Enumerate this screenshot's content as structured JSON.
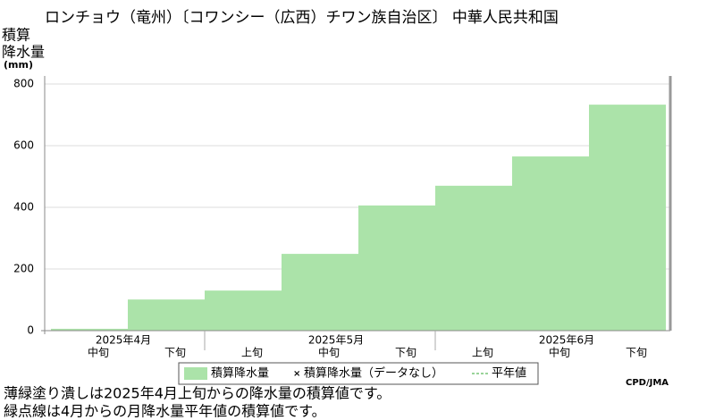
{
  "chart_data": {
    "type": "step-area",
    "title": "ロンチョウ（竜州）〔コワンシー（広西）チワン族自治区〕 中華人民共和国",
    "y_label": [
      "積算",
      "降水量",
      "(mm)"
    ],
    "months": [
      {
        "label": "2025年4月",
        "periods": [
          "中旬",
          "下旬"
        ]
      },
      {
        "label": "2025年5月",
        "periods": [
          "上旬",
          "中旬",
          "下旬"
        ]
      },
      {
        "label": "2025年6月",
        "periods": [
          "上旬",
          "中旬",
          "下旬"
        ]
      }
    ],
    "series": [
      {
        "name": "積算降水量",
        "color": "#abe3a9",
        "values": [
          6,
          101,
          130,
          249,
          406,
          470,
          565,
          733
        ]
      }
    ],
    "legend_extra": [
      "積算降水量（データなし）",
      "平年値"
    ],
    "ylim": [
      0,
      800
    ],
    "yticks": [
      0,
      200,
      400,
      600,
      800
    ],
    "grid": true,
    "source": "CPD/JMA",
    "notes": [
      "薄緑塗り潰しは2025年4月上旬からの降水量の積算値です。",
      "緑点線は4月からの月降水量平年値の積算値です。"
    ]
  }
}
